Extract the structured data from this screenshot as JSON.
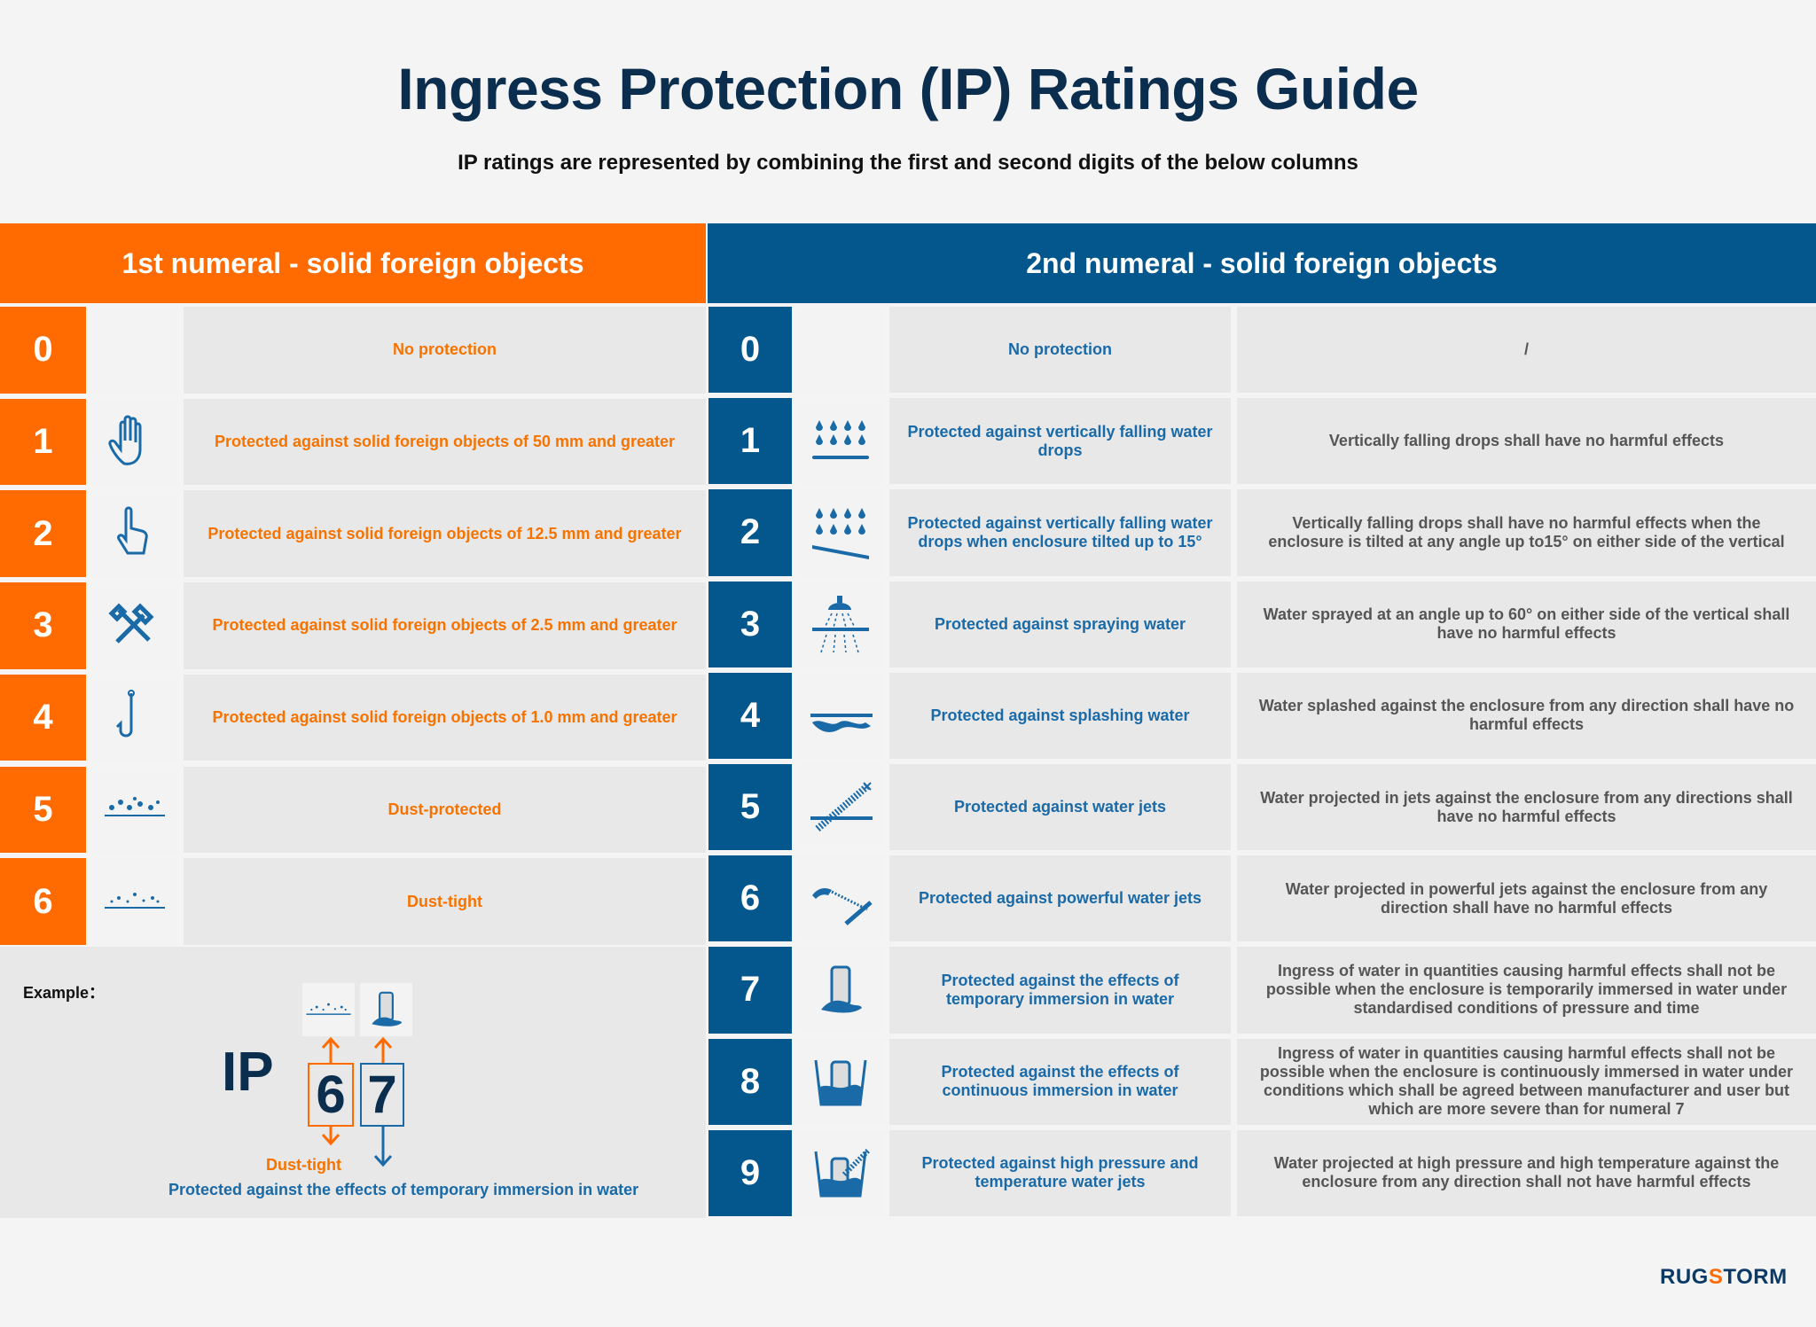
{
  "title": "Ingress Protection (IP) Ratings Guide",
  "subtitle": "IP ratings are represented by combining the first and second digits of the below columns",
  "colors": {
    "orange": "#ff6b00",
    "blue": "#03578d",
    "navy": "#0b2d4e"
  },
  "left": {
    "header": "1st numeral - solid foreign objects",
    "rows": [
      {
        "num": "0",
        "icon": "",
        "text": "No protection"
      },
      {
        "num": "1",
        "icon": "hand-icon",
        "text": "Protected against solid foreign objects of 50 mm and greater"
      },
      {
        "num": "2",
        "icon": "finger-icon",
        "text": "Protected against solid foreign objects of 12.5 mm and greater"
      },
      {
        "num": "3",
        "icon": "tools-icon",
        "text": "Protected against solid foreign objects of 2.5 mm and greater"
      },
      {
        "num": "4",
        "icon": "hook-icon",
        "text": "Protected against solid foreign objects of 1.0 mm and greater"
      },
      {
        "num": "5",
        "icon": "dust-large-icon",
        "text": "Dust-protected"
      },
      {
        "num": "6",
        "icon": "dust-fine-icon",
        "text": "Dust-tight"
      }
    ]
  },
  "right": {
    "header": "2nd numeral - solid foreign objects",
    "rows": [
      {
        "num": "0",
        "icon": "",
        "text": "No protection",
        "detail": "/"
      },
      {
        "num": "1",
        "icon": "drops-icon",
        "text": "Protected against vertically falling water drops",
        "detail": "Vertically falling drops shall have no harmful effects"
      },
      {
        "num": "2",
        "icon": "drops-tilted-icon",
        "text": "Protected against vertically falling water drops when enclosure tilted up to 15°",
        "detail": "Vertically falling drops shall have no harmful effects when the enclosure is tilted at any angle up to15° on either side of the vertical"
      },
      {
        "num": "3",
        "icon": "shower-icon",
        "text": "Protected against spraying water",
        "detail": "Water sprayed at an angle up to 60° on either side of the vertical shall have no harmful effects"
      },
      {
        "num": "4",
        "icon": "splash-icon",
        "text": "Protected against splashing water",
        "detail": "Water splashed against the enclosure from any direction shall have no harmful effects"
      },
      {
        "num": "5",
        "icon": "jet-icon",
        "text": "Protected against water jets",
        "detail": "Water projected in jets against the enclosure from any directions shall have no harmful effects"
      },
      {
        "num": "6",
        "icon": "powerful-jet-icon",
        "text": "Protected against powerful water jets",
        "detail": "Water projected in powerful jets against the enclosure from any direction shall have no harmful effects"
      },
      {
        "num": "7",
        "icon": "temporary-immersion-icon",
        "text": "Protected against the effects of temporary immersion in water",
        "detail": "Ingress of water in quantities causing harmful effects shall not be possible when the enclosure is temporarily immersed in water under standardised conditions of pressure and time"
      },
      {
        "num": "8",
        "icon": "continuous-immersion-icon",
        "text": "Protected against the effects of continuous immersion in water",
        "detail": "Ingress of water in quantities causing harmful effects shall not be possible when the enclosure is continuously immersed in water under conditions which shall be agreed between manufacturer and user but which are more severe than for numeral 7"
      },
      {
        "num": "9",
        "icon": "high-pressure-icon",
        "text": "Protected against high pressure and temperature water jets",
        "detail": "Water projected at high pressure and high temperature against the enclosure from any direction shall not have harmful effects"
      }
    ]
  },
  "example": {
    "label": "Example：",
    "prefix": "IP",
    "digit1": "6",
    "digit2": "7",
    "digit1_desc": "Dust-tight",
    "digit2_desc": "Protected against the effects of temporary immersion in water"
  },
  "logo": {
    "part1": "RUG",
    "bolt": "S",
    "part2": "TORM"
  }
}
